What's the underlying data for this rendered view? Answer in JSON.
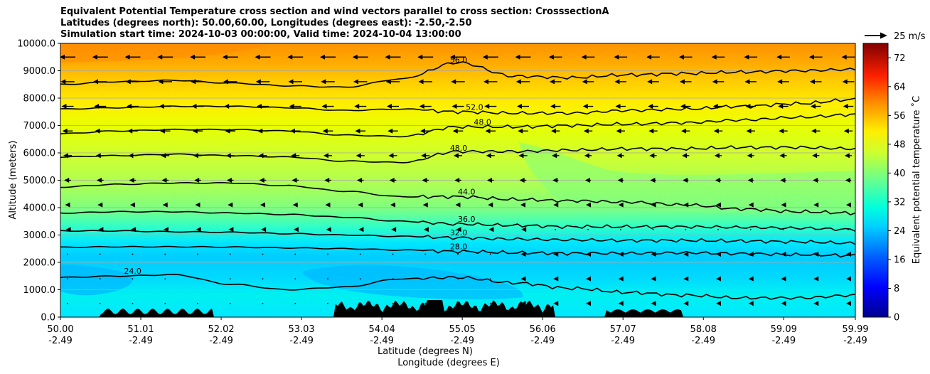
{
  "title": {
    "line1": "Equivalent Potential Temperature cross section and wind vectors parallel to cross section: CrosssectionA",
    "line2": "Latitudes (degrees north): 50.00,60.00, Longitudes (degrees east): -2.50,-2.50",
    "line3": "Simulation start time: 2024-10-03 00:00:00, Valid time: 2024-10-04 13:00:00"
  },
  "chart_data": {
    "type": "heatmap",
    "title": "Equivalent Potential Temperature cross section and wind vectors parallel to cross section: CrosssectionA",
    "ylabel": "Altitude (meters)",
    "xlabel_1": "Latitude (degrees N)",
    "xlabel_2": "Longitude (degrees E)",
    "ylim": [
      0,
      10000
    ],
    "xlim": [
      50.0,
      59.99
    ],
    "y_ticks": [
      "0.0",
      "1000.0",
      "2000.0",
      "3000.0",
      "4000.0",
      "5000.0",
      "6000.0",
      "7000.0",
      "8000.0",
      "9000.0",
      "10000.0"
    ],
    "y_tick_values": [
      0,
      1000,
      2000,
      3000,
      4000,
      5000,
      6000,
      7000,
      8000,
      9000,
      10000
    ],
    "x_ticks_lat": [
      "50.00",
      "51.01",
      "52.02",
      "53.03",
      "54.04",
      "55.05",
      "56.06",
      "57.07",
      "58.08",
      "59.09",
      "59.99"
    ],
    "x_ticks_lon": [
      "-2.49",
      "-2.49",
      "-2.49",
      "-2.49",
      "-2.49",
      "-2.49",
      "-2.49",
      "-2.49",
      "-2.49",
      "-2.49",
      "-2.49"
    ],
    "x_tick_values": [
      50.0,
      51.01,
      52.02,
      53.03,
      54.04,
      55.05,
      56.06,
      57.07,
      58.08,
      59.09,
      59.99
    ],
    "colorbar": {
      "label": "Equivalent potential temperature ˚C",
      "min": 0,
      "max": 76,
      "ticks": [
        "0",
        "8",
        "16",
        "24",
        "32",
        "40",
        "48",
        "56",
        "64",
        "72"
      ],
      "tick_values": [
        0,
        8,
        16,
        24,
        32,
        40,
        48,
        56,
        64,
        72
      ]
    },
    "wind_key": "25 m/s",
    "contours": [
      {
        "label": "24.0",
        "value": 24,
        "altitudes": [
          1450,
          1500,
          1550,
          1200,
          1000,
          1100,
          1400,
          1450,
          1250,
          1050,
          900,
          800,
          700,
          700,
          800
        ]
      },
      {
        "label": "28.0",
        "value": 28,
        "altitudes": [
          2550,
          2570,
          2570,
          2560,
          2530,
          2500,
          2450,
          2400,
          2350,
          2330,
          2330,
          2350,
          2320,
          2280,
          2250
        ]
      },
      {
        "label": "32.0",
        "value": 32,
        "altitudes": [
          3150,
          3150,
          3120,
          3100,
          3050,
          3000,
          2950,
          2900,
          2850,
          2820,
          2800,
          2800,
          2780,
          2750,
          2700
        ]
      },
      {
        "label": "36.0",
        "value": 36,
        "altitudes": [
          3800,
          3850,
          3850,
          3800,
          3750,
          3650,
          3500,
          3400,
          3350,
          3300,
          3300,
          3300,
          3280,
          3250,
          3200
        ]
      },
      {
        "label": "44.0",
        "value": 44,
        "altitudes": [
          4750,
          4850,
          4900,
          4900,
          4800,
          4600,
          4400,
          4400,
          4300,
          4250,
          4200,
          4100,
          3950,
          3850,
          3800
        ]
      },
      {
        "label": "48.0",
        "value": 48,
        "altitudes": [
          5850,
          5900,
          5950,
          5900,
          5850,
          5700,
          5650,
          6050,
          6050,
          6100,
          6150,
          6150,
          6200,
          6200,
          6150
        ]
      },
      {
        "label": "48.0",
        "value": 48,
        "altitudes": [
          6700,
          6800,
          6850,
          6850,
          6800,
          6650,
          6600,
          6950,
          6950,
          7000,
          7050,
          7100,
          7200,
          7300,
          7400
        ]
      },
      {
        "label": "52.0",
        "value": 52,
        "altitudes": [
          7600,
          7650,
          7700,
          7700,
          7650,
          7550,
          7600,
          7500,
          7450,
          7450,
          7550,
          7600,
          7700,
          7800,
          7950
        ]
      },
      {
        "label": "56.0",
        "value": 56,
        "altitudes": [
          8500,
          8600,
          8650,
          8550,
          8450,
          8400,
          8700,
          9300,
          8800,
          8750,
          8850,
          8900,
          8950,
          9000,
          9050
        ]
      }
    ],
    "terrain_note": "black terrain at surface"
  }
}
